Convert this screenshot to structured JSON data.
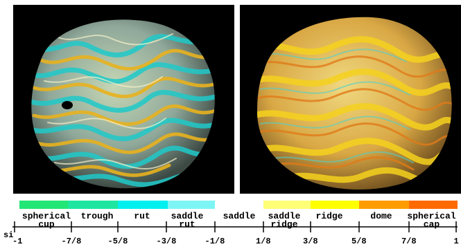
{
  "scale": {
    "prefix": "si",
    "colors": {
      "spherical_cup": "#22e676",
      "trough": "#1ee6a0",
      "rut": "#00f0f0",
      "saddle_rut": "#7ef5f5",
      "saddle": "#ffffff",
      "saddle_ridge": "#ffff77",
      "ridge": "#ffff00",
      "dome": "#ff9d00",
      "spherical_cap": "#ff6a00"
    },
    "categories": [
      {
        "label": "spherical\ncup",
        "color": "#22e676"
      },
      {
        "label": "trough",
        "color": "#1ee6a0"
      },
      {
        "label": "rut",
        "color": "#00f0f0"
      },
      {
        "label": "saddle\nrut",
        "color": "#7ef5f5"
      },
      {
        "label": "saddle",
        "color": "#ffffff"
      },
      {
        "label": "saddle\nridge",
        "color": "#ffff77"
      },
      {
        "label": "ridge",
        "color": "#ffff00"
      },
      {
        "label": "dome",
        "color": "#ff9d00"
      },
      {
        "label": "spherical\ncap",
        "color": "#ff6a00"
      }
    ],
    "ticks": [
      "-1",
      "-7/8",
      "-5/8",
      "-3/8",
      "-1/8",
      "1/8",
      "3/8",
      "5/8",
      "7/8",
      "1"
    ]
  }
}
